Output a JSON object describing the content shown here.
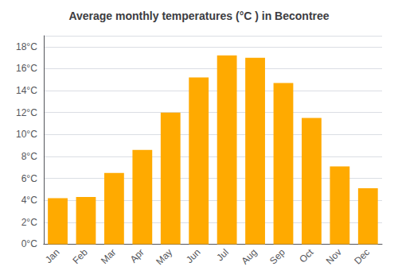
{
  "chart_data": {
    "type": "bar",
    "title": "Average monthly temperatures (°C ) in Becontree",
    "categories": [
      "Jan",
      "Feb",
      "Mar",
      "Apr",
      "May",
      "Jun",
      "Jul",
      "Aug",
      "Sep",
      "Oct",
      "Nov",
      "Dec"
    ],
    "values": [
      4.2,
      4.3,
      6.5,
      8.6,
      12.0,
      15.2,
      17.2,
      17.0,
      14.7,
      11.5,
      7.1,
      5.1
    ],
    "color": "#FFAA00",
    "ylim": [
      0,
      19
    ],
    "yticks": [
      {
        "value": 0,
        "label": "0°C"
      },
      {
        "value": 2,
        "label": "2°C"
      },
      {
        "value": 4,
        "label": "4°C"
      },
      {
        "value": 6,
        "label": "6°C"
      },
      {
        "value": 8,
        "label": "8°C"
      },
      {
        "value": 10,
        "label": "10°C"
      },
      {
        "value": 12,
        "label": "12°C"
      },
      {
        "value": 14,
        "label": "14°C"
      },
      {
        "value": 16,
        "label": "16°C"
      },
      {
        "value": 18,
        "label": "18°C"
      }
    ],
    "grid": true
  }
}
